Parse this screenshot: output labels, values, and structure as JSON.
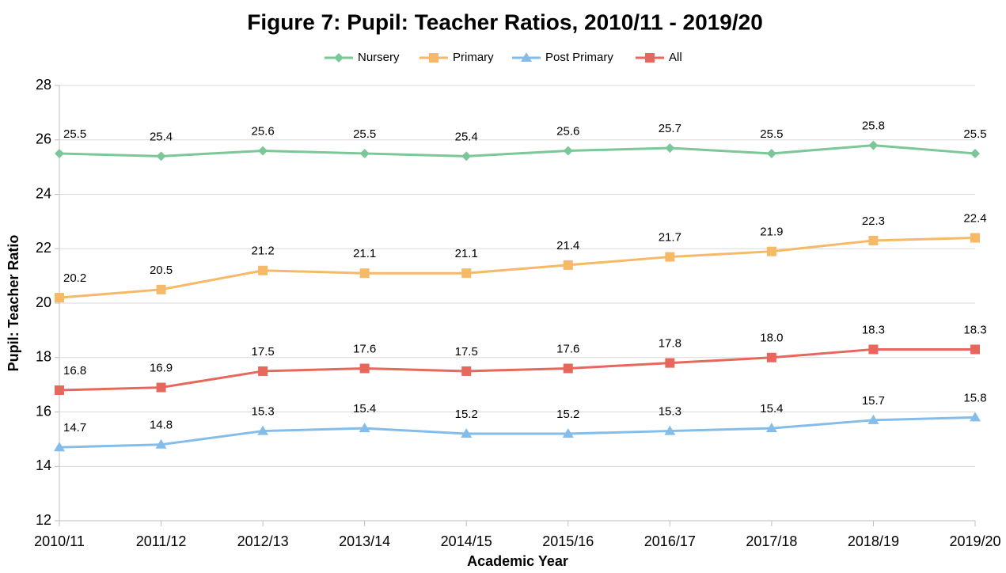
{
  "chart_data": {
    "type": "line",
    "title": "Figure 7: Pupil: Teacher Ratios, 2010/11 - 2019/20",
    "x_label": "Academic Year",
    "y_label": "Pupil: Teacher Ratio",
    "categories": [
      "2010/11",
      "2011/12",
      "2012/13",
      "2013/14",
      "2014/15",
      "2015/16",
      "2016/17",
      "2017/18",
      "2018/19",
      "2019/20"
    ],
    "ylim": [
      12,
      28
    ],
    "yticks": [
      12,
      14,
      16,
      18,
      20,
      22,
      24,
      26,
      28
    ],
    "grid": true,
    "legend": "top",
    "series": [
      {
        "name": "Nursery",
        "color": "#7cc797",
        "marker": "diamond",
        "values": [
          25.5,
          25.4,
          25.6,
          25.5,
          25.4,
          25.6,
          25.7,
          25.5,
          25.8,
          25.5
        ]
      },
      {
        "name": "Primary",
        "color": "#f5b967",
        "marker": "square",
        "values": [
          20.2,
          20.5,
          21.2,
          21.1,
          21.1,
          21.4,
          21.7,
          21.9,
          22.3,
          22.4
        ]
      },
      {
        "name": "Post Primary",
        "color": "#85bdea",
        "marker": "triangle",
        "values": [
          14.7,
          14.8,
          15.3,
          15.4,
          15.2,
          15.2,
          15.3,
          15.4,
          15.7,
          15.8
        ]
      },
      {
        "name": "All",
        "color": "#e8675d",
        "marker": "square",
        "values": [
          16.8,
          16.9,
          17.5,
          17.6,
          17.5,
          17.6,
          17.8,
          18,
          18.3,
          18.3
        ],
        "value_labels": [
          "16.8",
          "16.9",
          "17.5",
          "17.6",
          "17.5",
          "17.6",
          "17.8",
          "18.0",
          "18.3",
          "18.3"
        ]
      }
    ]
  }
}
